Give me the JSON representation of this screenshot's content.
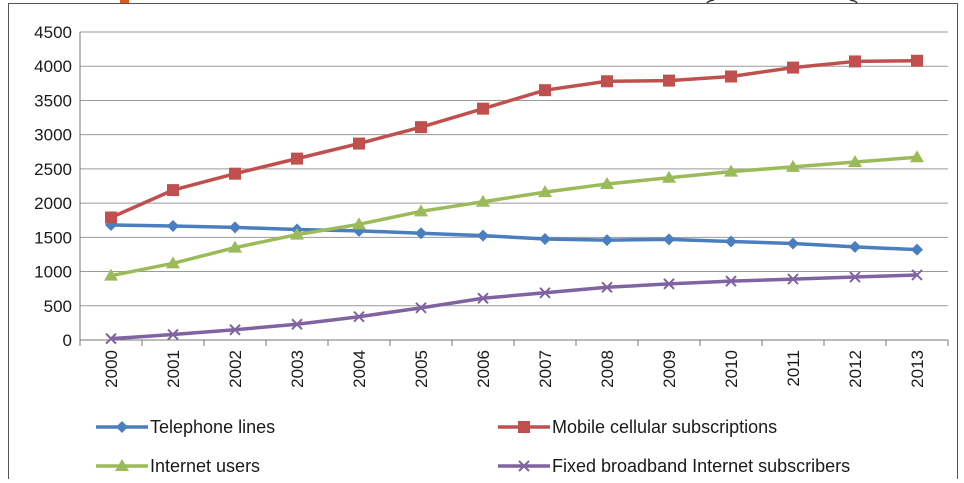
{
  "chart_data": {
    "type": "line",
    "title": "",
    "xlabel": "",
    "ylabel": "",
    "ylim": [
      0,
      4500
    ],
    "y_ticks": [
      "0",
      "500",
      "1000",
      "1500",
      "2000",
      "2500",
      "3000",
      "3500",
      "4000",
      "4500"
    ],
    "grid": "horizontal",
    "legend_position": "bottom",
    "categories": [
      "2000",
      "2001",
      "2002",
      "2003",
      "2004",
      "2005",
      "2006",
      "2007",
      "2008",
      "2009",
      "2010",
      "2011",
      "2012",
      "2013"
    ],
    "series": [
      {
        "name": "Telephone lines",
        "color": "#4a7ebf",
        "marker": "diamond",
        "values": [
          1680,
          1665,
          1645,
          1615,
          1595,
          1560,
          1525,
          1475,
          1460,
          1470,
          1440,
          1410,
          1360,
          1320
        ]
      },
      {
        "name": "Mobile cellular subscriptions",
        "color": "#c0504d",
        "marker": "square",
        "values": [
          1790,
          2190,
          2430,
          2650,
          2870,
          3110,
          3380,
          3650,
          3780,
          3790,
          3850,
          3980,
          4070,
          4080
        ]
      },
      {
        "name": "Internet users",
        "color": "#9bbb59",
        "marker": "triangle",
        "values": [
          940,
          1120,
          1350,
          1540,
          1690,
          1880,
          2020,
          2160,
          2280,
          2370,
          2460,
          2530,
          2600,
          2670
        ]
      },
      {
        "name": "Fixed broadband Internet subscribers",
        "color": "#8064a2",
        "marker": "x",
        "values": [
          20,
          80,
          150,
          230,
          340,
          470,
          610,
          690,
          770,
          820,
          860,
          890,
          920,
          950
        ]
      }
    ]
  }
}
